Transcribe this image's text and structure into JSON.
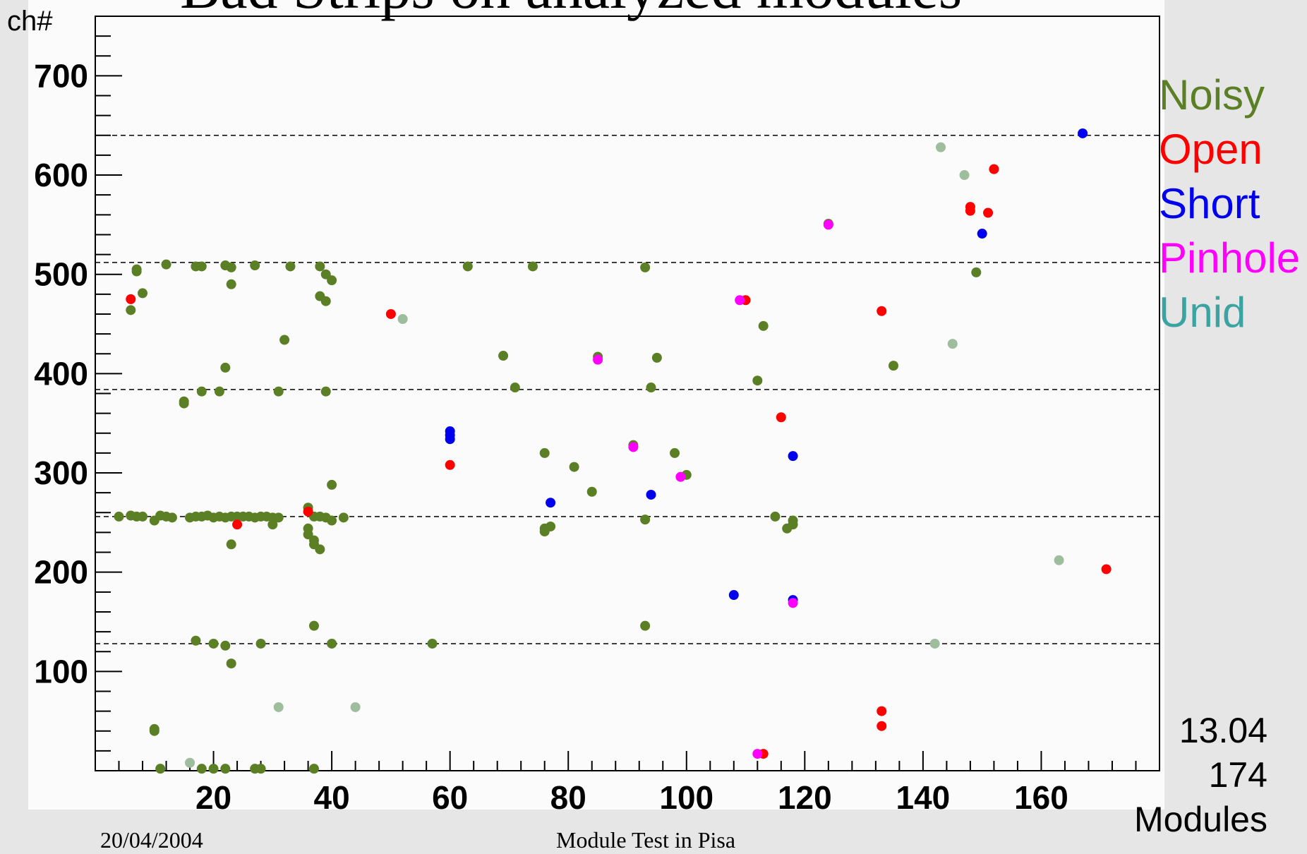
{
  "slide": {
    "title": "Bad Strips on analyzed modules",
    "footer_date": "20/04/2004",
    "footer_center": "Module Test in Pisa"
  },
  "info_box": {
    "value": "13.04",
    "count": "174",
    "label": "Modules"
  },
  "colors": {
    "Noisy": "#5b7f25",
    "Open": "#ff0000",
    "Short": "#0000ee",
    "Pinhole": "#ff00ff",
    "Unid": "#9dbd9d",
    "legend_Unid": "#3ca3a3"
  },
  "chart_data": {
    "type": "scatter",
    "title": "Bad Strips on analyzed modules",
    "xlabel": "Modules",
    "ylabel": "ch#",
    "xlim": [
      0,
      180
    ],
    "ylim": [
      0,
      760
    ],
    "xticks": [
      20,
      40,
      60,
      80,
      100,
      120,
      140,
      160
    ],
    "yticks": [
      100,
      200,
      300,
      400,
      500,
      600,
      700
    ],
    "reference_lines": [
      128,
      256,
      384,
      512,
      640
    ],
    "legend": [
      "Noisy",
      "Open",
      "Short",
      "Pinhole",
      "Unid"
    ],
    "legend_position": "right",
    "grid": false,
    "series": [
      {
        "name": "Noisy",
        "points": [
          [
            4,
            256
          ],
          [
            6,
            257
          ],
          [
            7,
            256
          ],
          [
            8,
            256
          ],
          [
            10,
            252
          ],
          [
            11,
            257
          ],
          [
            12,
            256
          ],
          [
            13,
            255
          ],
          [
            16,
            255
          ],
          [
            17,
            256
          ],
          [
            18,
            256
          ],
          [
            19,
            257
          ],
          [
            20,
            255
          ],
          [
            21,
            256
          ],
          [
            22,
            255
          ],
          [
            23,
            256
          ],
          [
            24,
            256
          ],
          [
            25,
            256
          ],
          [
            26,
            256
          ],
          [
            27,
            255
          ],
          [
            28,
            256
          ],
          [
            29,
            256
          ],
          [
            30,
            255
          ],
          [
            31,
            255
          ],
          [
            30,
            248
          ],
          [
            36,
            265
          ],
          [
            37,
            256
          ],
          [
            38,
            256
          ],
          [
            39,
            255
          ],
          [
            40,
            252
          ],
          [
            42,
            255
          ],
          [
            36,
            244
          ],
          [
            36,
            238
          ],
          [
            37,
            232
          ],
          [
            37,
            228
          ],
          [
            38,
            223
          ],
          [
            7,
            505
          ],
          [
            7,
            503
          ],
          [
            8,
            481
          ],
          [
            6,
            464
          ],
          [
            12,
            510
          ],
          [
            17,
            508
          ],
          [
            18,
            508
          ],
          [
            22,
            509
          ],
          [
            23,
            507
          ],
          [
            27,
            509
          ],
          [
            33,
            508
          ],
          [
            38,
            508
          ],
          [
            39,
            500
          ],
          [
            40,
            494
          ],
          [
            23,
            490
          ],
          [
            38,
            478
          ],
          [
            39,
            473
          ],
          [
            32,
            434
          ],
          [
            22,
            406
          ],
          [
            15,
            372
          ],
          [
            15,
            370
          ],
          [
            18,
            382
          ],
          [
            21,
            382
          ],
          [
            31,
            382
          ],
          [
            39,
            382
          ],
          [
            40,
            288
          ],
          [
            23,
            228
          ],
          [
            37,
            146
          ],
          [
            17,
            131
          ],
          [
            20,
            128
          ],
          [
            22,
            126
          ],
          [
            28,
            128
          ],
          [
            40,
            128
          ],
          [
            23,
            108
          ],
          [
            10,
            40
          ],
          [
            10,
            42
          ],
          [
            11,
            2
          ],
          [
            18,
            2
          ],
          [
            20,
            2
          ],
          [
            22,
            2
          ],
          [
            27,
            2
          ],
          [
            28,
            2
          ],
          [
            37,
            2
          ],
          [
            57,
            128
          ],
          [
            63,
            508
          ],
          [
            74,
            508
          ],
          [
            69,
            418
          ],
          [
            71,
            386
          ],
          [
            76,
            320
          ],
          [
            76,
            244
          ],
          [
            77,
            246
          ],
          [
            76,
            241
          ],
          [
            81,
            306
          ],
          [
            84,
            281
          ],
          [
            85,
            417
          ],
          [
            91,
            328
          ],
          [
            93,
            507
          ],
          [
            93,
            253
          ],
          [
            93,
            146
          ],
          [
            94,
            386
          ],
          [
            95,
            416
          ],
          [
            98,
            320
          ],
          [
            100,
            298
          ],
          [
            112,
            393
          ],
          [
            113,
            448
          ],
          [
            115,
            256
          ],
          [
            117,
            244
          ],
          [
            118,
            248
          ],
          [
            118,
            252
          ],
          [
            124,
            551
          ],
          [
            135,
            408
          ],
          [
            149,
            502
          ]
        ]
      },
      {
        "name": "Open",
        "points": [
          [
            6,
            475
          ],
          [
            24,
            248
          ],
          [
            36,
            261
          ],
          [
            50,
            460
          ],
          [
            60,
            308
          ],
          [
            110,
            474
          ],
          [
            113,
            17
          ],
          [
            116,
            356
          ],
          [
            133,
            463
          ],
          [
            133,
            60
          ],
          [
            133,
            45
          ],
          [
            148,
            568
          ],
          [
            148,
            564
          ],
          [
            151,
            562
          ],
          [
            152,
            606
          ],
          [
            171,
            203
          ]
        ]
      },
      {
        "name": "Short",
        "points": [
          [
            60,
            342
          ],
          [
            60,
            338
          ],
          [
            60,
            334
          ],
          [
            77,
            270
          ],
          [
            94,
            278
          ],
          [
            108,
            177
          ],
          [
            118,
            172
          ],
          [
            118,
            317
          ],
          [
            150,
            541
          ],
          [
            167,
            642
          ]
        ]
      },
      {
        "name": "Pinhole",
        "points": [
          [
            85,
            414
          ],
          [
            91,
            326
          ],
          [
            99,
            296
          ],
          [
            109,
            474
          ],
          [
            112,
            17
          ],
          [
            118,
            169
          ],
          [
            124,
            550
          ]
        ]
      },
      {
        "name": "Unid",
        "points": [
          [
            52,
            455
          ],
          [
            16,
            8
          ],
          [
            31,
            64
          ],
          [
            44,
            64
          ],
          [
            142,
            128
          ],
          [
            143,
            628
          ],
          [
            145,
            430
          ],
          [
            147,
            600
          ],
          [
            163,
            212
          ]
        ]
      }
    ]
  }
}
